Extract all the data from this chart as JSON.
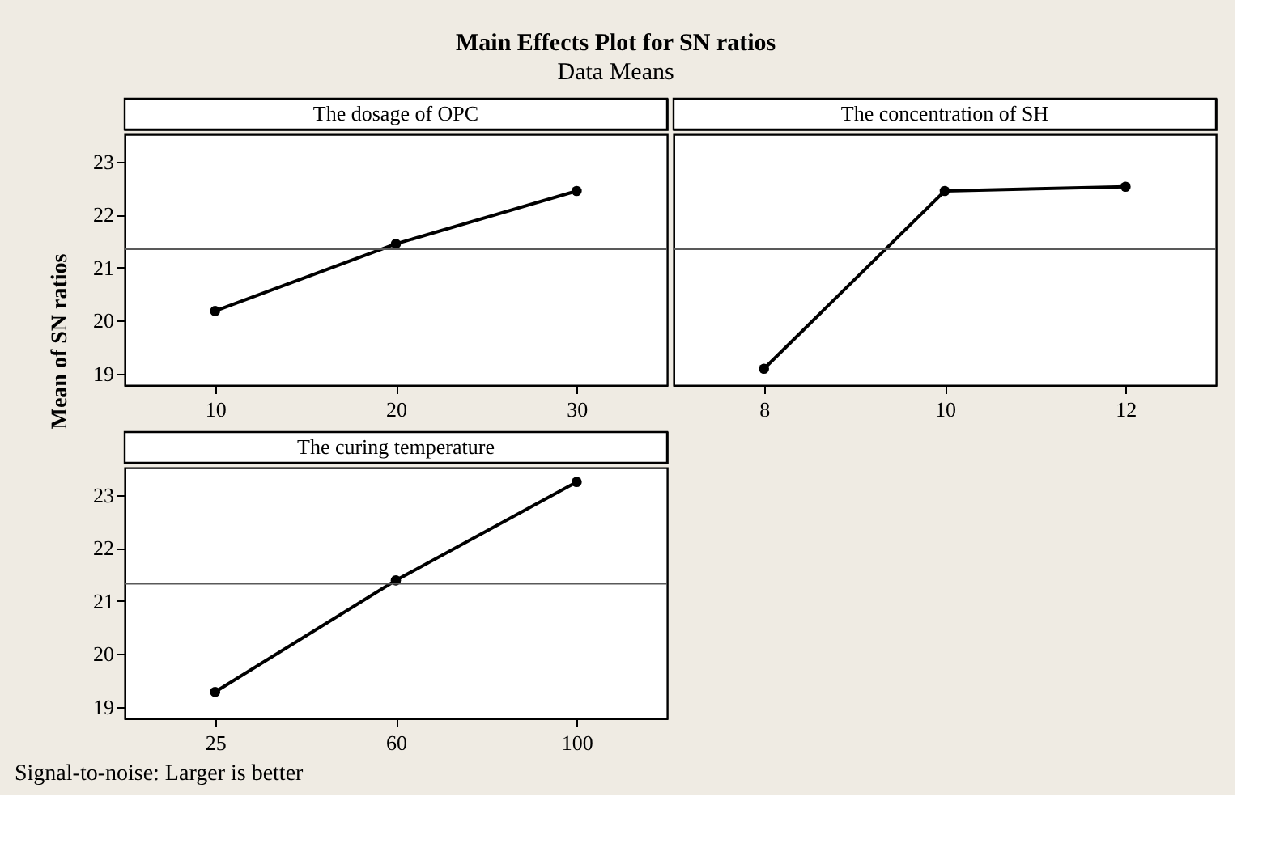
{
  "chart_data": [
    {
      "type": "other",
      "title": "Main Effects Plot for SN ratios",
      "subtitle": "Data Means",
      "ylabel": "Mean of SN ratios",
      "annotations": [
        "Signal-to-noise: Larger is better"
      ]
    },
    {
      "type": "line",
      "title": "The dosage of OPC",
      "categories": [
        "10",
        "20",
        "30"
      ],
      "series": [
        {
          "color": "#000000",
          "values": [
            20.18,
            21.45,
            22.45
          ]
        }
      ],
      "ylim": [
        18.78,
        23.52
      ],
      "yticks": [
        19,
        20,
        21,
        22,
        23
      ],
      "ref_lines": [
        {
          "axis": "y",
          "value": 21.35,
          "color": "#595959"
        }
      ],
      "marker": "circle",
      "line_style": "solid",
      "grid": false
    },
    {
      "type": "line",
      "title": "The concentration of SH",
      "categories": [
        "8",
        "10",
        "12"
      ],
      "series": [
        {
          "color": "#000000",
          "values": [
            19.09,
            22.45,
            22.53
          ]
        }
      ],
      "ylim": [
        18.78,
        23.52
      ],
      "tick_labels": "x",
      "ref_lines": [
        {
          "axis": "y",
          "value": 21.35,
          "color": "#595959"
        }
      ],
      "marker": "circle",
      "line_style": "solid",
      "grid": false
    },
    {
      "type": "line",
      "title": "The curing temperature",
      "categories": [
        "25",
        "60",
        "100"
      ],
      "series": [
        {
          "color": "#000000",
          "values": [
            19.28,
            21.39,
            23.25
          ]
        }
      ],
      "ylim": [
        18.78,
        23.52
      ],
      "yticks": [
        19,
        20,
        21,
        22,
        23
      ],
      "ref_lines": [
        {
          "axis": "y",
          "value": 21.33,
          "color": "#595959"
        }
      ],
      "marker": "circle",
      "line_style": "solid",
      "grid": false
    }
  ]
}
